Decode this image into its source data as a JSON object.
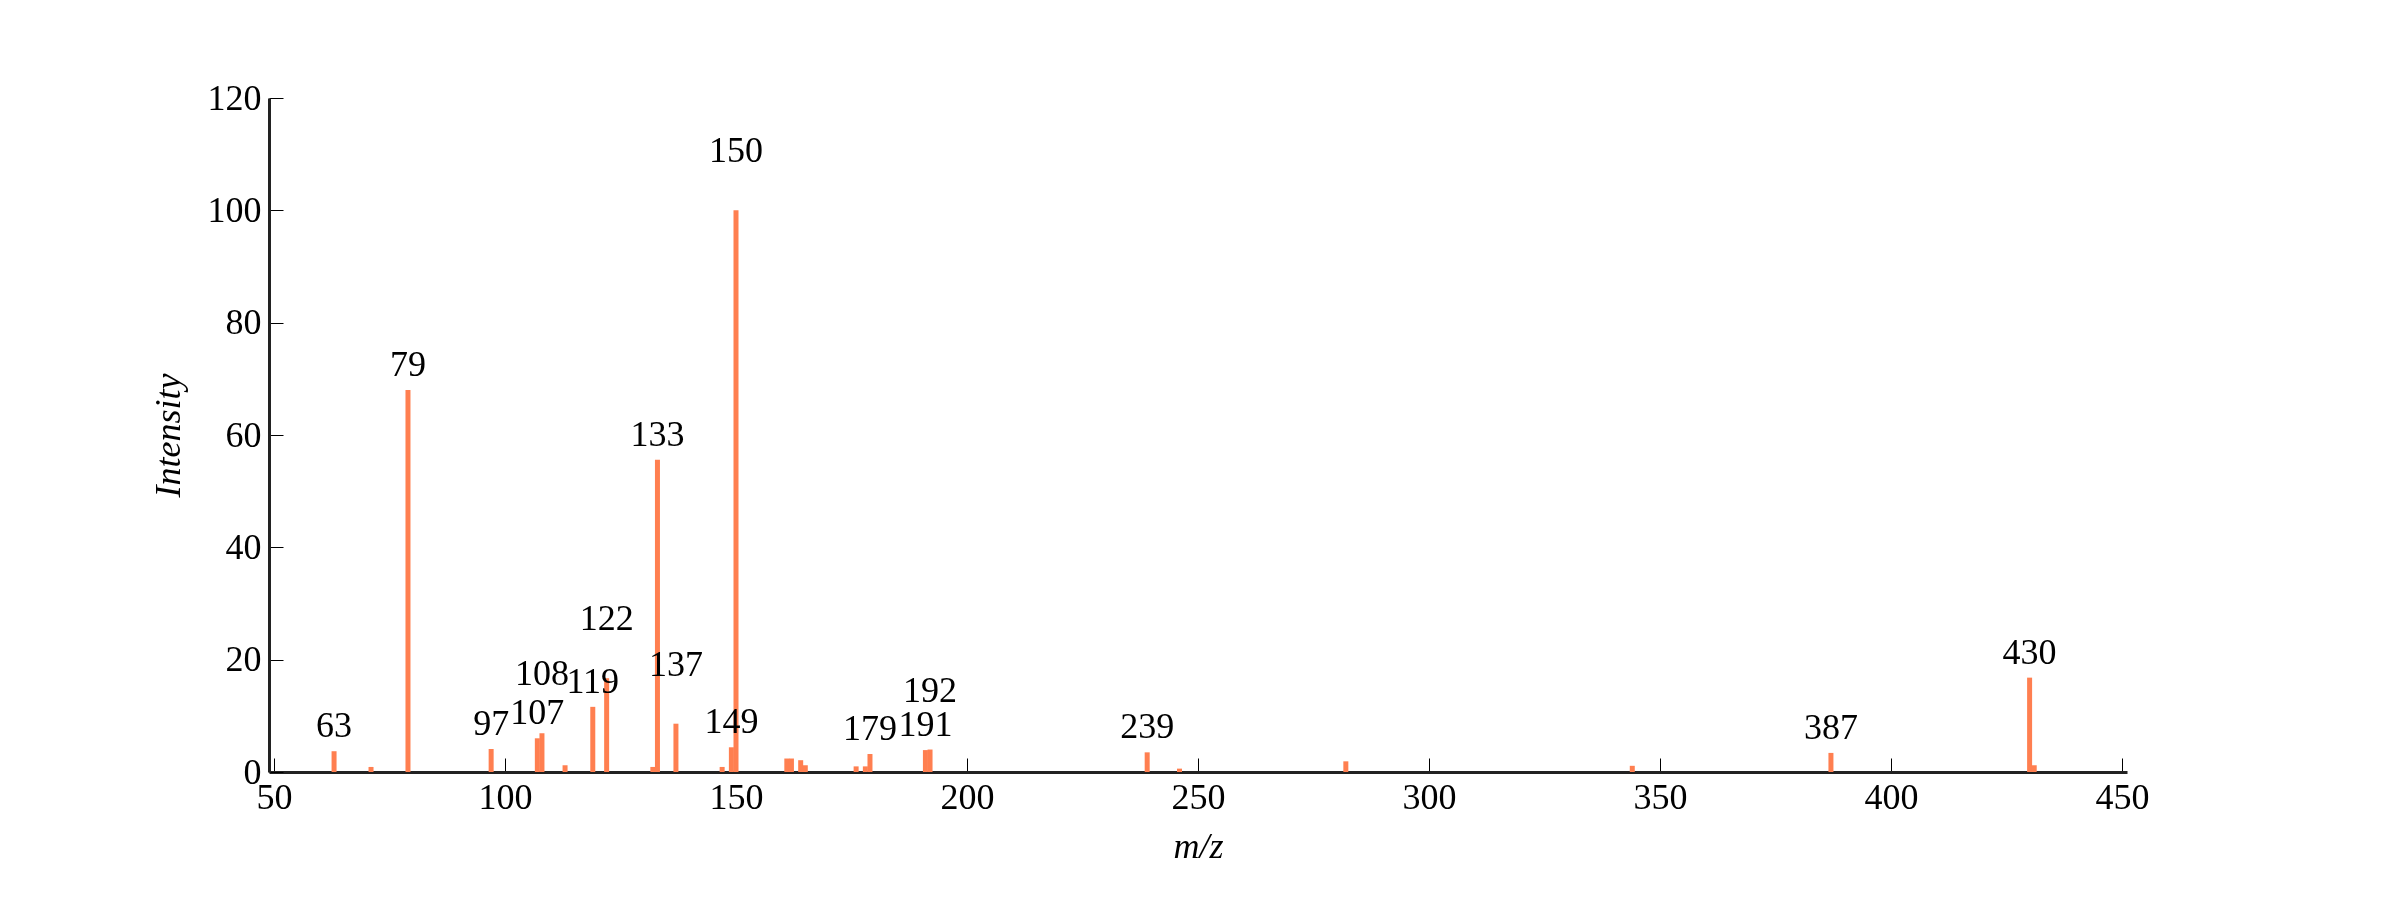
{
  "chart_data": {
    "type": "bar",
    "xlabel": "m/z",
    "ylabel": "Intensity",
    "x": [
      63,
      71,
      79,
      97,
      107,
      108,
      113,
      119,
      122,
      132,
      133,
      137,
      147,
      149,
      150,
      161,
      162,
      164,
      165,
      176,
      178,
      179,
      191,
      192,
      239,
      246,
      282,
      344,
      387,
      430,
      431
    ],
    "values": [
      3.7,
      0.9,
      68,
      4.1,
      6.0,
      6.9,
      1.2,
      11.6,
      16.7,
      0.9,
      55.6,
      8.6,
      0.9,
      4.4,
      100,
      2.4,
      2.4,
      2.1,
      1.2,
      1.0,
      1.0,
      3.2,
      3.9,
      4.0,
      3.5,
      0.6,
      1.9,
      1.1,
      3.4,
      16.8,
      1.2
    ],
    "color": "#ff7f50",
    "xlim": [
      50,
      450
    ],
    "xticks": [
      50,
      100,
      150,
      200,
      250,
      300,
      350,
      400,
      450
    ],
    "ylim": [
      0,
      120
    ],
    "yticks": [
      0,
      20,
      40,
      60,
      80,
      100,
      120
    ],
    "grid": false,
    "annotations": [
      {
        "text": "63",
        "x": 63,
        "y": 3.7
      },
      {
        "text": "79",
        "x": 79,
        "y": 68
      },
      {
        "text": "97",
        "x": 97,
        "y": 4.1
      },
      {
        "text": "107",
        "x": 107,
        "y": 6.0
      },
      {
        "text": "108",
        "x": 108,
        "y": 6.9
      },
      {
        "text": "119",
        "x": 119,
        "y": 11.6
      },
      {
        "text": "122",
        "x": 122,
        "y": 16.7
      },
      {
        "text": "133",
        "x": 133,
        "y": 55.6
      },
      {
        "text": "137",
        "x": 137,
        "y": 8.6
      },
      {
        "text": "149",
        "x": 149,
        "y": 4.4
      },
      {
        "text": "150",
        "x": 150,
        "y": 100
      },
      {
        "text": "179",
        "x": 179,
        "y": 3.2
      },
      {
        "text": "191",
        "x": 191,
        "y": 3.9
      },
      {
        "text": "192",
        "x": 192,
        "y": 4.0
      },
      {
        "text": "239",
        "x": 239,
        "y": 3.5
      },
      {
        "text": "387",
        "x": 387,
        "y": 3.4
      },
      {
        "text": "430",
        "x": 430,
        "y": 16.8
      }
    ]
  }
}
